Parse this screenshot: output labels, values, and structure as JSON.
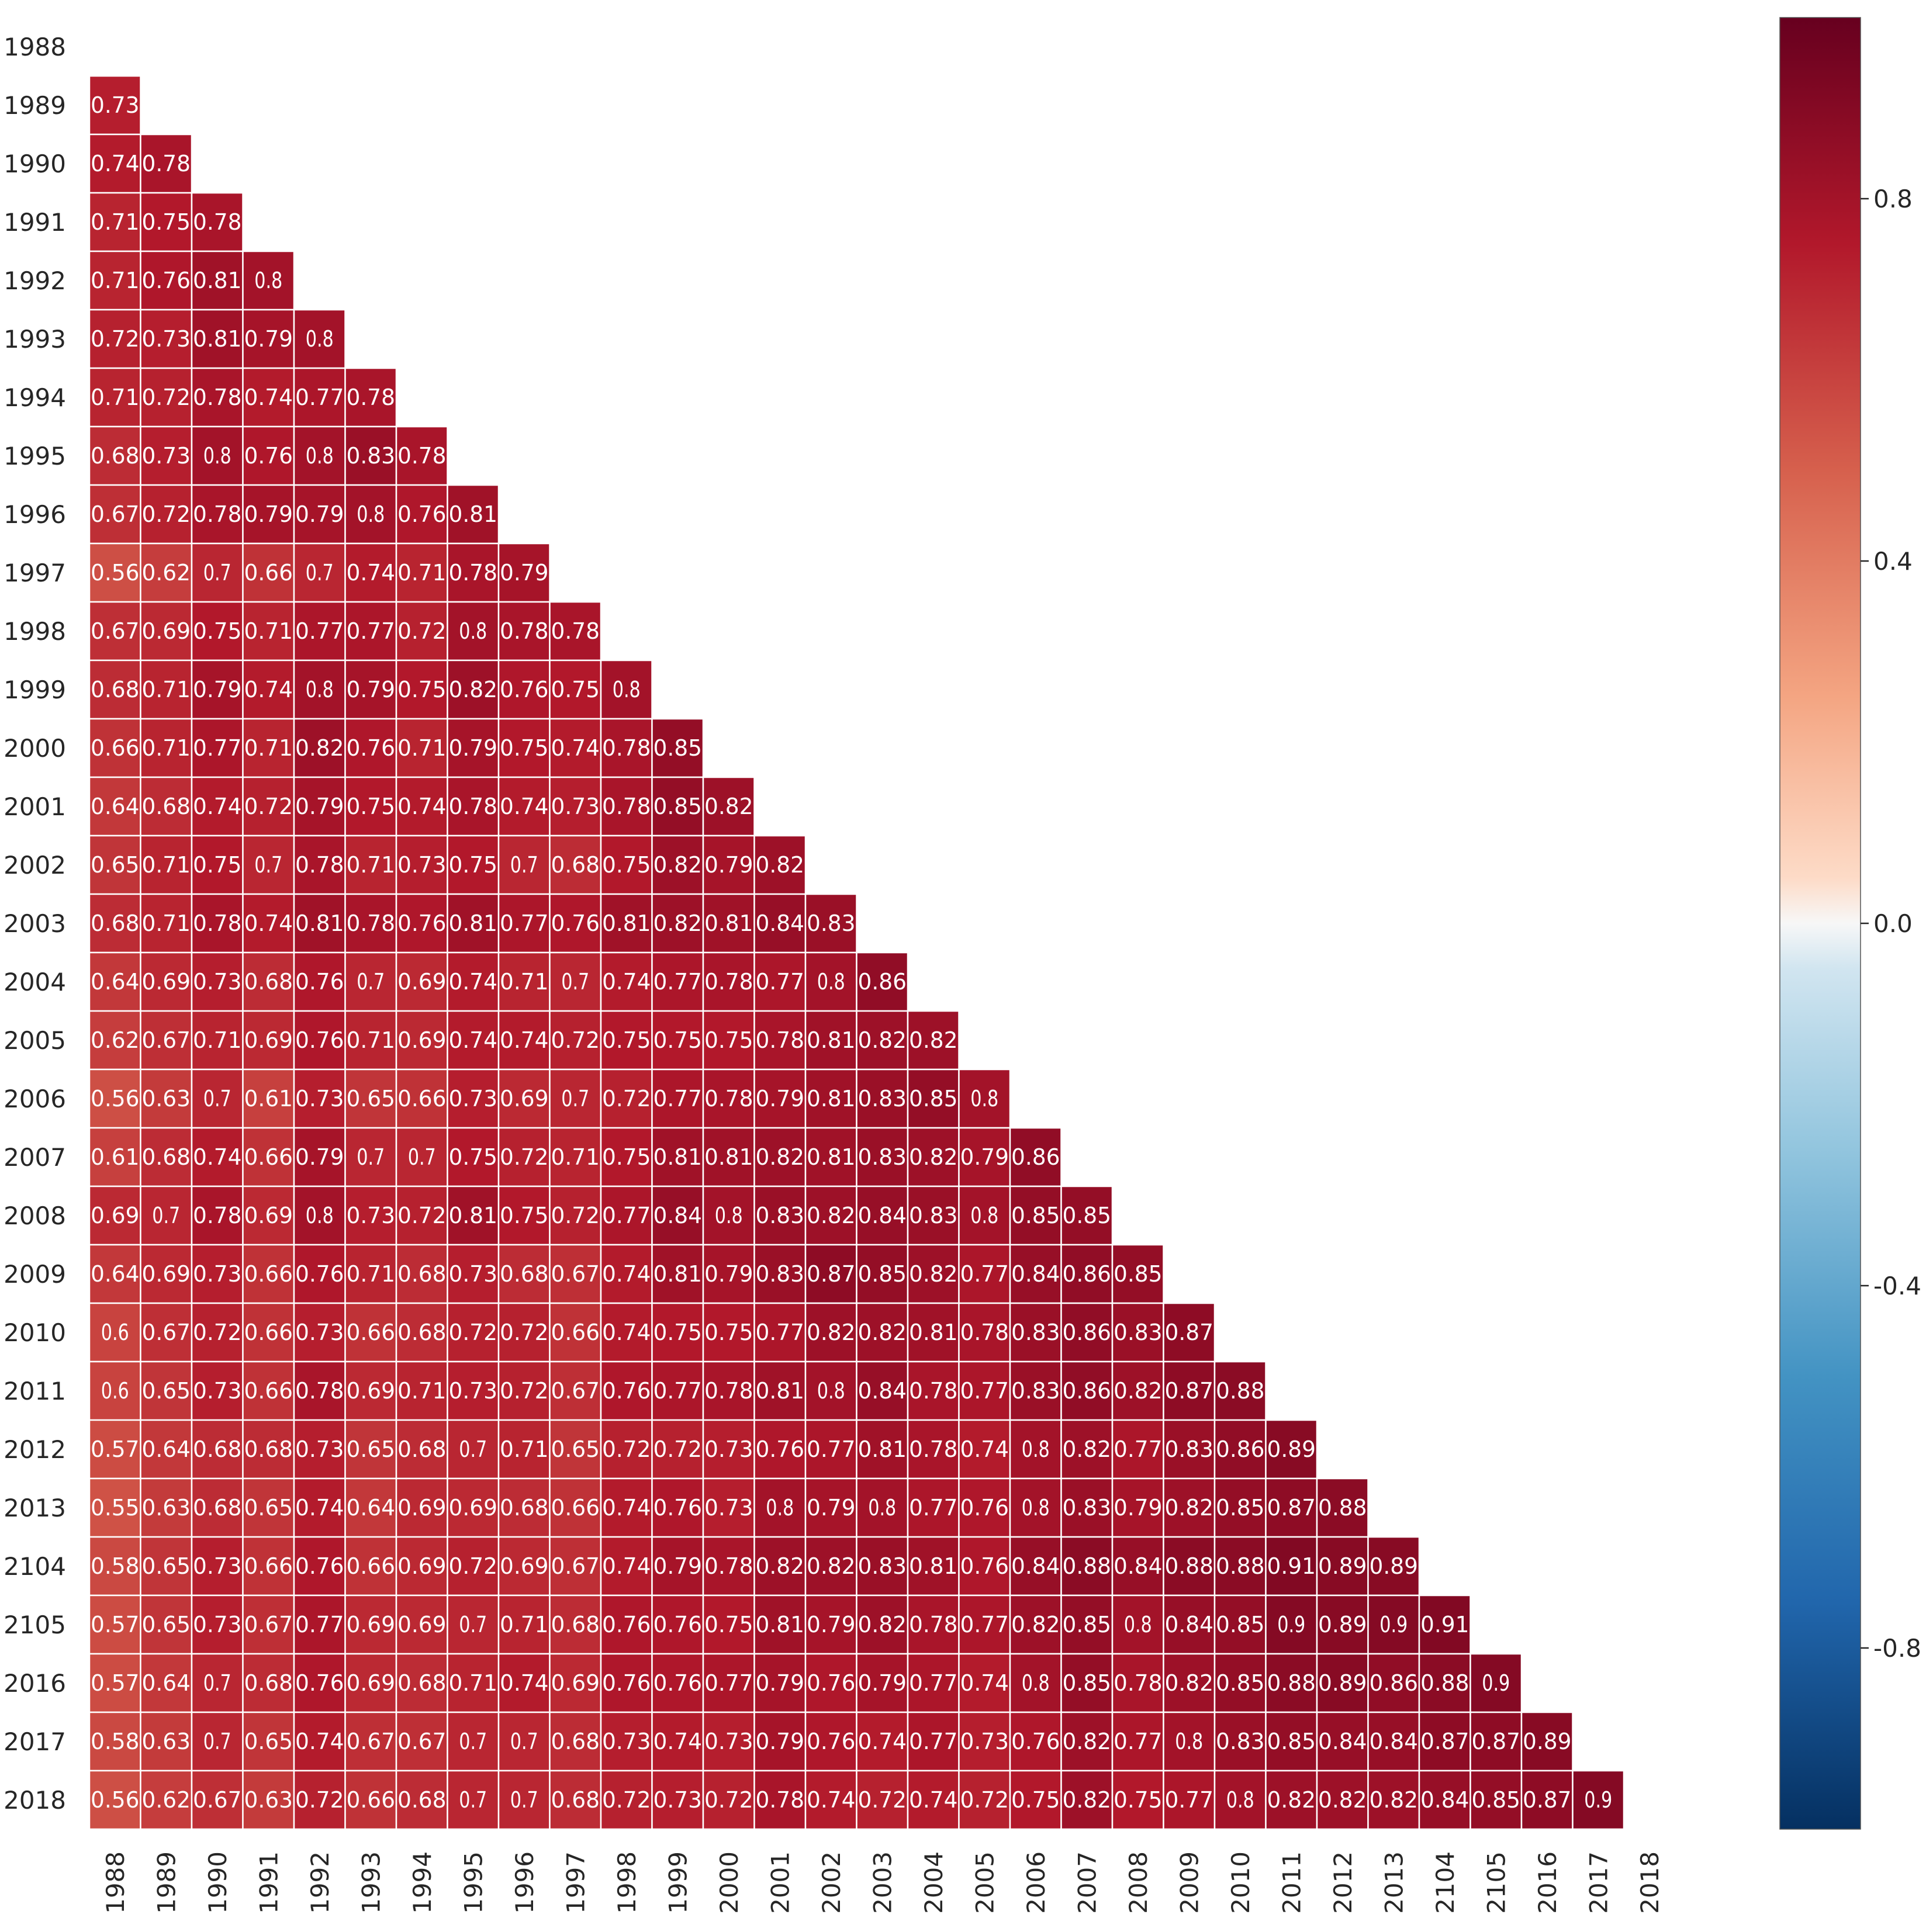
{
  "chart_data": {
    "type": "heatmap",
    "title": "",
    "xlabel": "",
    "ylabel": "",
    "row_labels": [
      "1988",
      "1989",
      "1990",
      "1991",
      "1992",
      "1993",
      "1994",
      "1995",
      "1996",
      "1997",
      "1998",
      "1999",
      "2000",
      "2001",
      "2002",
      "2003",
      "2004",
      "2005",
      "2006",
      "2007",
      "2008",
      "2009",
      "2010",
      "2011",
      "2012",
      "2013",
      "2104",
      "2105",
      "2016",
      "2017",
      "2018"
    ],
    "col_labels": [
      "1988",
      "1989",
      "1990",
      "1991",
      "1992",
      "1993",
      "1994",
      "1995",
      "1996",
      "1997",
      "1998",
      "1999",
      "2000",
      "2001",
      "2002",
      "2003",
      "2004",
      "2005",
      "2006",
      "2007",
      "2008",
      "2009",
      "2010",
      "2011",
      "2012",
      "2013",
      "2104",
      "2105",
      "2016",
      "2017",
      "2018"
    ],
    "mask": "upper triangle including diagonal (lower triangle shown)",
    "values": [
      [],
      [
        0.73
      ],
      [
        0.74,
        0.78
      ],
      [
        0.71,
        0.75,
        0.78
      ],
      [
        0.71,
        0.76,
        0.81,
        0.8
      ],
      [
        0.72,
        0.73,
        0.81,
        0.79,
        0.8
      ],
      [
        0.71,
        0.72,
        0.78,
        0.74,
        0.77,
        0.78
      ],
      [
        0.68,
        0.73,
        0.8,
        0.76,
        0.8,
        0.83,
        0.78
      ],
      [
        0.67,
        0.72,
        0.78,
        0.79,
        0.79,
        0.8,
        0.76,
        0.81
      ],
      [
        0.56,
        0.62,
        0.7,
        0.66,
        0.7,
        0.74,
        0.71,
        0.78,
        0.79
      ],
      [
        0.67,
        0.69,
        0.75,
        0.71,
        0.77,
        0.77,
        0.72,
        0.8,
        0.78,
        0.78
      ],
      [
        0.68,
        0.71,
        0.79,
        0.74,
        0.8,
        0.79,
        0.75,
        0.82,
        0.76,
        0.75,
        0.8
      ],
      [
        0.66,
        0.71,
        0.77,
        0.71,
        0.82,
        0.76,
        0.71,
        0.79,
        0.75,
        0.74,
        0.78,
        0.85
      ],
      [
        0.64,
        0.68,
        0.74,
        0.72,
        0.79,
        0.75,
        0.74,
        0.78,
        0.74,
        0.73,
        0.78,
        0.85,
        0.82
      ],
      [
        0.65,
        0.71,
        0.75,
        0.7,
        0.78,
        0.71,
        0.73,
        0.75,
        0.7,
        0.68,
        0.75,
        0.82,
        0.79,
        0.82
      ],
      [
        0.68,
        0.71,
        0.78,
        0.74,
        0.81,
        0.78,
        0.76,
        0.81,
        0.77,
        0.76,
        0.81,
        0.82,
        0.81,
        0.84,
        0.83
      ],
      [
        0.64,
        0.69,
        0.73,
        0.68,
        0.76,
        0.7,
        0.69,
        0.74,
        0.71,
        0.7,
        0.74,
        0.77,
        0.78,
        0.77,
        0.8,
        0.86
      ],
      [
        0.62,
        0.67,
        0.71,
        0.69,
        0.76,
        0.71,
        0.69,
        0.74,
        0.74,
        0.72,
        0.75,
        0.75,
        0.75,
        0.78,
        0.81,
        0.82,
        0.82
      ],
      [
        0.56,
        0.63,
        0.7,
        0.61,
        0.73,
        0.65,
        0.66,
        0.73,
        0.69,
        0.7,
        0.72,
        0.77,
        0.78,
        0.79,
        0.81,
        0.83,
        0.85,
        0.8
      ],
      [
        0.61,
        0.68,
        0.74,
        0.66,
        0.79,
        0.7,
        0.7,
        0.75,
        0.72,
        0.71,
        0.75,
        0.81,
        0.81,
        0.82,
        0.81,
        0.83,
        0.82,
        0.79,
        0.86
      ],
      [
        0.69,
        0.7,
        0.78,
        0.69,
        0.8,
        0.73,
        0.72,
        0.81,
        0.75,
        0.72,
        0.77,
        0.84,
        0.8,
        0.83,
        0.82,
        0.84,
        0.83,
        0.8,
        0.85,
        0.85
      ],
      [
        0.64,
        0.69,
        0.73,
        0.66,
        0.76,
        0.71,
        0.68,
        0.73,
        0.68,
        0.67,
        0.74,
        0.81,
        0.79,
        0.83,
        0.87,
        0.85,
        0.82,
        0.77,
        0.84,
        0.86,
        0.85
      ],
      [
        0.6,
        0.67,
        0.72,
        0.66,
        0.73,
        0.66,
        0.68,
        0.72,
        0.72,
        0.66,
        0.74,
        0.75,
        0.75,
        0.77,
        0.82,
        0.82,
        0.81,
        0.78,
        0.83,
        0.86,
        0.83,
        0.87
      ],
      [
        0.6,
        0.65,
        0.73,
        0.66,
        0.78,
        0.69,
        0.71,
        0.73,
        0.72,
        0.67,
        0.76,
        0.77,
        0.78,
        0.81,
        0.8,
        0.84,
        0.78,
        0.77,
        0.83,
        0.86,
        0.82,
        0.87,
        0.88
      ],
      [
        0.57,
        0.64,
        0.68,
        0.68,
        0.73,
        0.65,
        0.68,
        0.7,
        0.71,
        0.65,
        0.72,
        0.72,
        0.73,
        0.76,
        0.77,
        0.81,
        0.78,
        0.74,
        0.8,
        0.82,
        0.77,
        0.83,
        0.86,
        0.89
      ],
      [
        0.55,
        0.63,
        0.68,
        0.65,
        0.74,
        0.64,
        0.69,
        0.69,
        0.68,
        0.66,
        0.74,
        0.76,
        0.73,
        0.8,
        0.79,
        0.8,
        0.77,
        0.76,
        0.8,
        0.83,
        0.79,
        0.82,
        0.85,
        0.87,
        0.88
      ],
      [
        0.58,
        0.65,
        0.73,
        0.66,
        0.76,
        0.66,
        0.69,
        0.72,
        0.69,
        0.67,
        0.74,
        0.79,
        0.78,
        0.82,
        0.82,
        0.83,
        0.81,
        0.76,
        0.84,
        0.88,
        0.84,
        0.88,
        0.88,
        0.91,
        0.89,
        0.89
      ],
      [
        0.57,
        0.65,
        0.73,
        0.67,
        0.77,
        0.69,
        0.69,
        0.7,
        0.71,
        0.68,
        0.76,
        0.76,
        0.75,
        0.81,
        0.79,
        0.82,
        0.78,
        0.77,
        0.82,
        0.85,
        0.8,
        0.84,
        0.85,
        0.9,
        0.89,
        0.9,
        0.91
      ],
      [
        0.57,
        0.64,
        0.7,
        0.68,
        0.76,
        0.69,
        0.68,
        0.71,
        0.74,
        0.69,
        0.76,
        0.76,
        0.77,
        0.79,
        0.76,
        0.79,
        0.77,
        0.74,
        0.8,
        0.85,
        0.78,
        0.82,
        0.85,
        0.88,
        0.89,
        0.86,
        0.88,
        0.9
      ],
      [
        0.58,
        0.63,
        0.7,
        0.65,
        0.74,
        0.67,
        0.67,
        0.7,
        0.7,
        0.68,
        0.73,
        0.74,
        0.73,
        0.79,
        0.76,
        0.74,
        0.77,
        0.73,
        0.76,
        0.82,
        0.77,
        0.8,
        0.83,
        0.85,
        0.84,
        0.84,
        0.87,
        0.87,
        0.89
      ],
      [
        0.56,
        0.62,
        0.67,
        0.63,
        0.72,
        0.66,
        0.68,
        0.7,
        0.7,
        0.68,
        0.72,
        0.73,
        0.72,
        0.78,
        0.74,
        0.72,
        0.74,
        0.72,
        0.75,
        0.82,
        0.75,
        0.77,
        0.8,
        0.82,
        0.82,
        0.82,
        0.84,
        0.85,
        0.87,
        0.9
      ]
    ],
    "colorbar": {
      "colormap": "RdBu_r",
      "vmin": -1.0,
      "vmax": 1.0,
      "ticks": [
        0.8,
        0.4,
        0.0,
        -0.4,
        -0.8
      ],
      "tick_labels": [
        "0.8",
        "0.4",
        "0.0",
        "-0.4",
        "-0.8"
      ]
    },
    "annotations": true,
    "grid": false
  }
}
